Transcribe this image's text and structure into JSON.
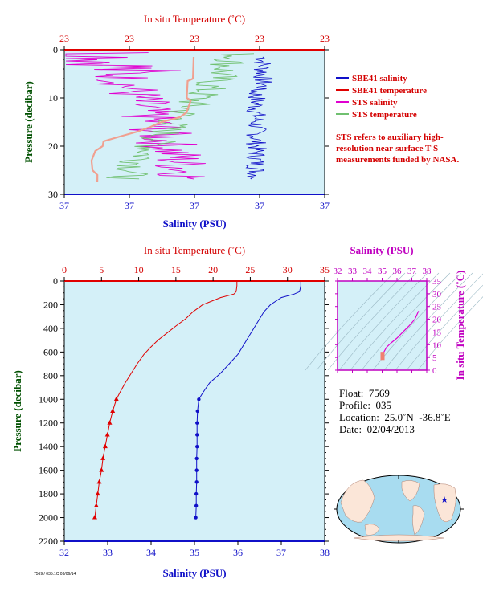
{
  "colors": {
    "plot_bg": "#d4f0f8",
    "salinity": "#1010c8",
    "temperature": "#e00000",
    "sts_salinity": "#e000d0",
    "sts_temperature": "#70c070",
    "sts_temperature_red": "#f0a090",
    "ts_axis": "#c000c0",
    "pressure_axis": "#005000"
  },
  "icons": {
    "float_marker": "star-icon"
  },
  "note": "STS refers to auxiliary high-resolution near-surface T-S measurements funded by NASA.",
  "info": {
    "float": "Float:  7569",
    "profile": "Profile:  035",
    "location": "Location:  25.0˚N  -36.8˚E",
    "date": "Date:  02/04/2013"
  },
  "footer": "7569 / 035.1C 03/06/14",
  "chart_data": [
    {
      "type": "line",
      "panel": "near-surface",
      "title_top": "In situ Temperature (˚C)",
      "top_ticks": [
        "23",
        "23",
        "23",
        "23",
        "23"
      ],
      "xlabel": "Salinity (PSU)",
      "bottom_ticks": [
        "37",
        "37",
        "37",
        "37",
        "37"
      ],
      "ylabel": "Pressure (decibar)",
      "y_ticks": [
        "0",
        "10",
        "20",
        "30"
      ],
      "ylim": [
        0,
        30
      ],
      "legend": [
        "SBE41 salinity",
        "SBE41 temperature",
        "STS salinity",
        "STS temperature"
      ],
      "legend_placement": "right"
    },
    {
      "type": "line",
      "panel": "profile",
      "title_top": "In situ Temperature (˚C)",
      "top_ticks": [
        "0",
        "5",
        "10",
        "15",
        "20",
        "25",
        "30",
        "35"
      ],
      "xlim_temperature": [
        0,
        35
      ],
      "xlabel": "Salinity (PSU)",
      "bottom_ticks": [
        "32",
        "33",
        "34",
        "35",
        "36",
        "37",
        "38"
      ],
      "xlim_salinity": [
        32,
        38
      ],
      "ylabel": "Pressure (decibar)",
      "y_ticks": [
        "0",
        "200",
        "400",
        "600",
        "800",
        "1000",
        "1200",
        "1400",
        "1600",
        "1800",
        "2000",
        "2200"
      ],
      "ylim": [
        0,
        2200
      ],
      "series": [
        {
          "name": "SBE41 temperature",
          "pressure": [
            0,
            40,
            90,
            110,
            140,
            200,
            260,
            320,
            380,
            440,
            500,
            560,
            620,
            700,
            780,
            860,
            940,
            1000,
            1100,
            1200,
            1300,
            1400,
            1500,
            1600,
            1700,
            1800,
            1900,
            2000
          ],
          "values": [
            23.2,
            23.2,
            23.1,
            22.8,
            21.0,
            18.6,
            17.3,
            16.3,
            15.0,
            13.8,
            12.6,
            11.6,
            10.7,
            9.8,
            9.0,
            8.2,
            7.5,
            7.0,
            6.5,
            6.1,
            5.8,
            5.5,
            5.2,
            5.0,
            4.7,
            4.5,
            4.3,
            4.1
          ]
        },
        {
          "name": "SBE41 salinity",
          "pressure": [
            0,
            40,
            90,
            110,
            140,
            200,
            260,
            320,
            380,
            440,
            500,
            560,
            620,
            700,
            780,
            860,
            940,
            1000,
            1100,
            1200,
            1300,
            1400,
            1500,
            1600,
            1700,
            1800,
            1900,
            2000
          ],
          "values": [
            37.45,
            37.45,
            37.42,
            37.3,
            37.0,
            36.75,
            36.6,
            36.5,
            36.4,
            36.3,
            36.2,
            36.1,
            36.0,
            35.8,
            35.6,
            35.35,
            35.2,
            35.1,
            35.07,
            35.06,
            35.06,
            35.06,
            35.05,
            35.05,
            35.05,
            35.04,
            35.04,
            35.03
          ]
        }
      ]
    },
    {
      "type": "scatter",
      "panel": "ts-diagram",
      "title_top": "Salinity (PSU)",
      "top_ticks": [
        "32",
        "33",
        "34",
        "35",
        "36",
        "37",
        "38"
      ],
      "xlim": [
        32,
        38
      ],
      "ylabel": "In situ Temperature (˚C)",
      "y_ticks": [
        "0",
        "5",
        "10",
        "15",
        "20",
        "25",
        "30",
        "35"
      ],
      "ylim": [
        0,
        35
      ],
      "series": [
        {
          "salinity": [
            35.05,
            35.05,
            35.1,
            35.3,
            35.6,
            36.0,
            36.4,
            36.8,
            37.2,
            37.45
          ],
          "temperature": [
            4.1,
            5.5,
            7.0,
            9.0,
            10.7,
            12.6,
            15.0,
            17.3,
            20.0,
            23.2
          ]
        }
      ]
    }
  ]
}
